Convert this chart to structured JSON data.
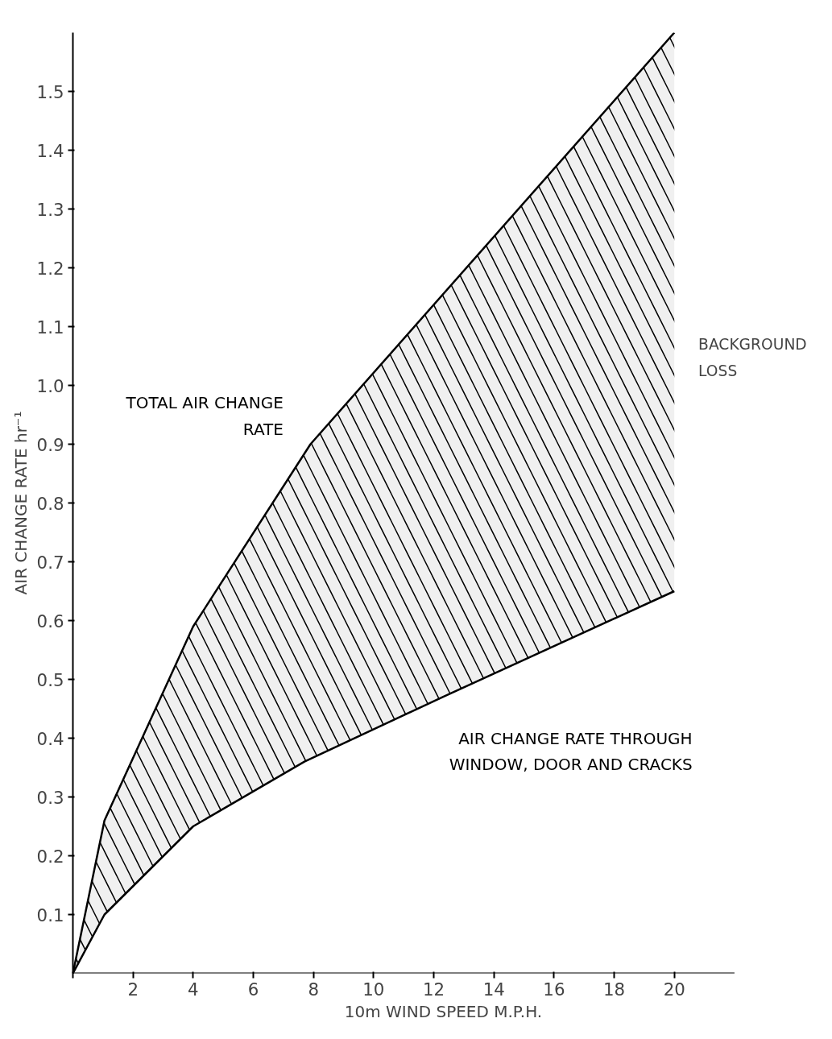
{
  "chart_data": {
    "type": "line",
    "xlabel": "10m WIND SPEED M.P.H.",
    "ylabel": "AIR CHANGE RATE hr⁻¹",
    "series": [
      {
        "name": "TOTAL AIR CHANGE RATE",
        "color": "#000000",
        "x": [
          0,
          1.05,
          4,
          7.9,
          20
        ],
        "values": [
          0,
          0.26,
          0.59,
          0.9,
          1.6
        ],
        "lower": [
          0,
          0.1,
          0.25,
          0.365,
          0.65
        ],
        "upper": [
          0,
          0.26,
          0.59,
          0.9,
          1.6
        ]
      },
      {
        "name": "AIR CHANGE RATE THROUGH WINDOW, DOOR AND CRACKS",
        "color": "#000000",
        "x": [
          0,
          1.05,
          4,
          7.7,
          12.3,
          20
        ],
        "values": [
          0,
          0.1,
          0.25,
          0.36,
          0.47,
          0.65
        ]
      }
    ],
    "annotations": [
      "BACKGROUND LOSS"
    ],
    "xlim": [
      0,
      22
    ],
    "ylim": [
      0,
      1.6
    ],
    "xticks": [
      {
        "value": 0,
        "label": null
      },
      2,
      4,
      6,
      8,
      10,
      12,
      14,
      16,
      18,
      20
    ],
    "yticks": [
      0.1,
      0.2,
      0.3,
      0.4,
      0.5,
      0.6,
      0.7,
      0.8,
      0.9,
      {
        "value": 1.0,
        "label": "1.0"
      },
      1.1,
      1.2,
      1.3,
      1.4,
      1.5
    ],
    "grid": false,
    "marker": "none",
    "line_style": "solid"
  }
}
